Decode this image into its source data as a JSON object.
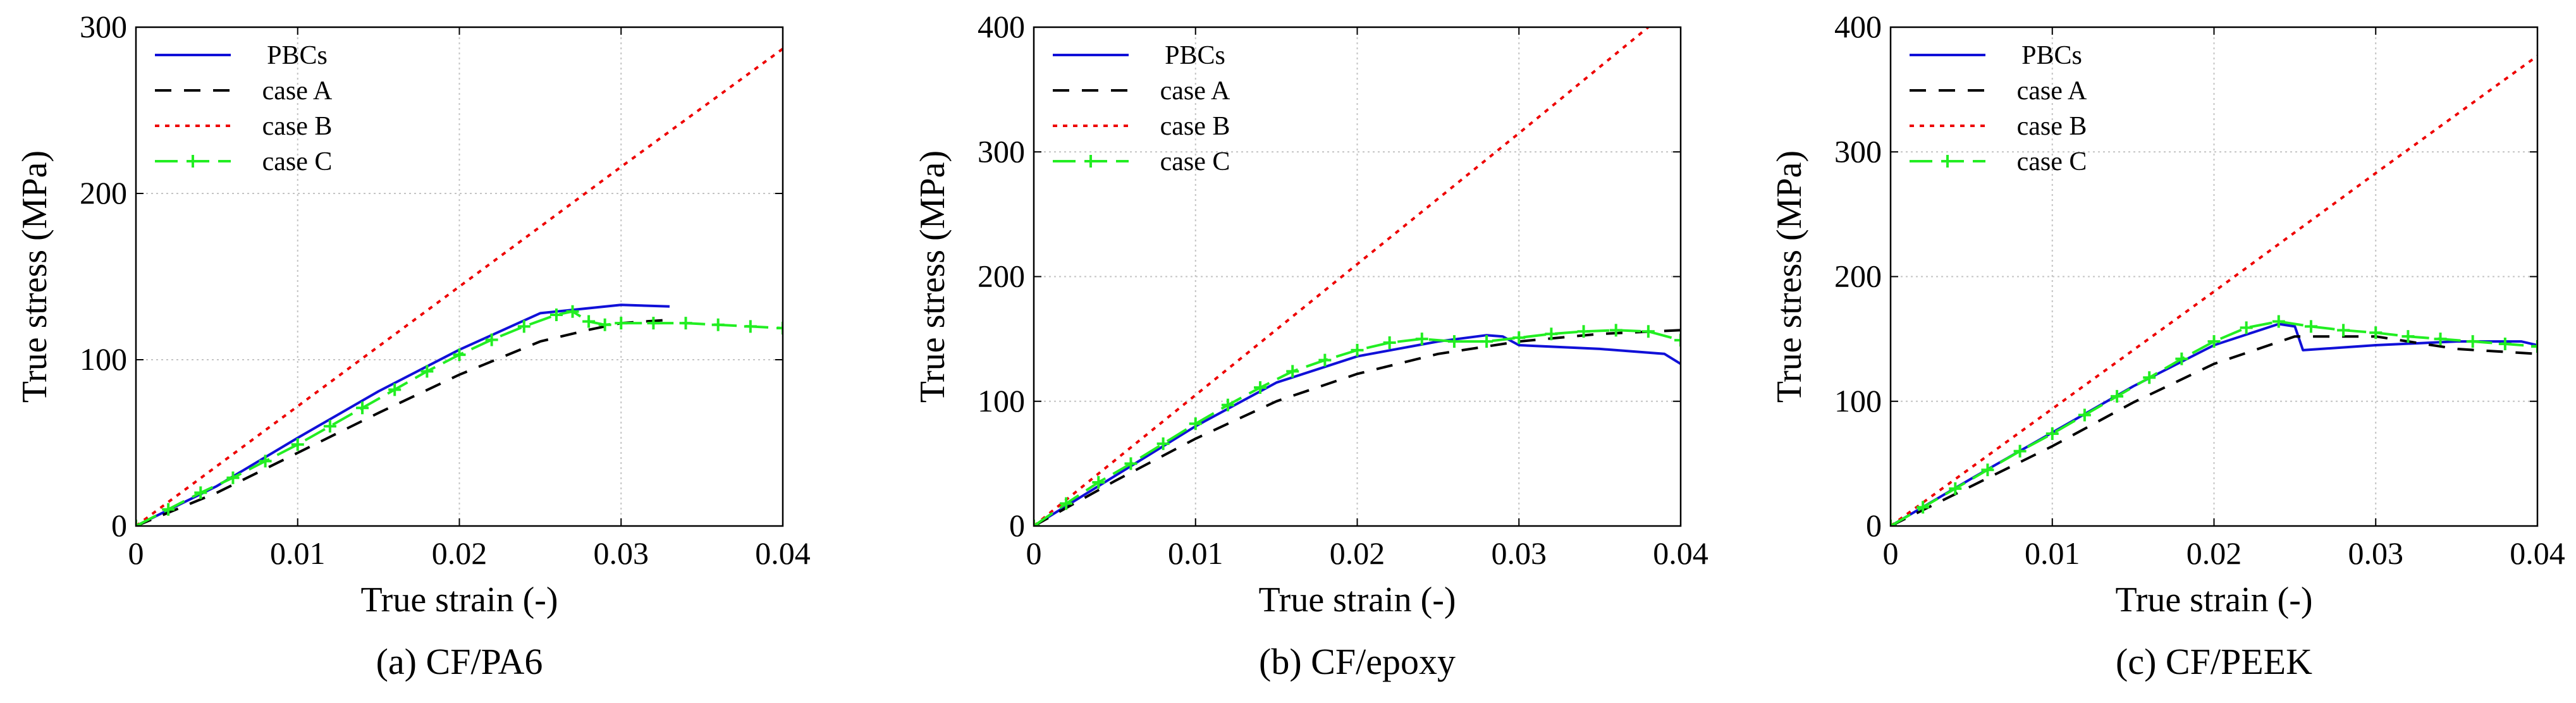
{
  "chart_data": [
    {
      "type": "line",
      "caption": "(a)  CF/PA6",
      "xlabel": "True strain (-)",
      "ylabel": "True stress (MPa)",
      "xlim": [
        0,
        0.04
      ],
      "ylim": [
        0,
        300
      ],
      "xticks": [
        "0",
        "0.01",
        "0.02",
        "0.03",
        "0.04"
      ],
      "yticks": [
        "0",
        "100",
        "200",
        "300"
      ],
      "grid": true,
      "legend_position": "top-left",
      "series": [
        {
          "name": "PBCs",
          "x": [
            0,
            0.005,
            0.01,
            0.015,
            0.02,
            0.025,
            0.028,
            0.03,
            0.033
          ],
          "y": [
            0,
            24,
            53,
            81,
            106,
            128,
            131,
            133,
            132
          ]
        },
        {
          "name": "case A",
          "x": [
            0,
            0.005,
            0.01,
            0.015,
            0.02,
            0.025,
            0.028,
            0.03,
            0.033
          ],
          "y": [
            0,
            20,
            44,
            68,
            91,
            111,
            118,
            122,
            124
          ]
        },
        {
          "name": "case B",
          "x": [
            0,
            0.01,
            0.02,
            0.03,
            0.04
          ],
          "y": [
            0,
            72,
            144,
            216,
            287
          ]
        },
        {
          "name": "case C",
          "x": [
            0,
            0.002,
            0.004,
            0.006,
            0.008,
            0.01,
            0.012,
            0.014,
            0.016,
            0.018,
            0.02,
            0.022,
            0.024,
            0.026,
            0.027,
            0.028,
            0.029,
            0.03,
            0.032,
            0.034,
            0.036,
            0.038,
            0.04
          ],
          "y": [
            0,
            10,
            20,
            29,
            39,
            49,
            60,
            71,
            82,
            93,
            103,
            112,
            120,
            127,
            129,
            123,
            121,
            122,
            122,
            122,
            121,
            120,
            119
          ]
        }
      ]
    },
    {
      "type": "line",
      "caption": "(b) CF/epoxy",
      "xlabel": "True strain (-)",
      "ylabel": "True stress (MPa)",
      "xlim": [
        0,
        0.04
      ],
      "ylim": [
        0,
        400
      ],
      "xticks": [
        "0",
        "0.01",
        "0.02",
        "0.03",
        "0.04"
      ],
      "yticks": [
        "0",
        "100",
        "200",
        "300",
        "400"
      ],
      "grid": true,
      "legend_position": "top-left",
      "series": [
        {
          "name": "PBCs",
          "x": [
            0,
            0.005,
            0.01,
            0.015,
            0.02,
            0.025,
            0.028,
            0.029,
            0.03,
            0.035,
            0.039,
            0.04
          ],
          "y": [
            0,
            40,
            80,
            115,
            136,
            148,
            153,
            152,
            145,
            142,
            138,
            130
          ]
        },
        {
          "name": "case A",
          "x": [
            0,
            0.005,
            0.01,
            0.015,
            0.02,
            0.025,
            0.03,
            0.035,
            0.04
          ],
          "y": [
            0,
            36,
            70,
            100,
            122,
            138,
            148,
            154,
            157
          ]
        },
        {
          "name": "case B",
          "x": [
            0,
            0.01,
            0.02,
            0.03,
            0.038
          ],
          "y": [
            0,
            105,
            210,
            315,
            400
          ]
        },
        {
          "name": "case C",
          "x": [
            0,
            0.002,
            0.004,
            0.006,
            0.008,
            0.01,
            0.012,
            0.014,
            0.016,
            0.018,
            0.02,
            0.022,
            0.024,
            0.026,
            0.028,
            0.03,
            0.032,
            0.034,
            0.036,
            0.038,
            0.04
          ],
          "y": [
            0,
            18,
            35,
            50,
            66,
            82,
            97,
            111,
            124,
            133,
            141,
            147,
            150,
            148,
            148,
            151,
            154,
            156,
            157,
            156,
            149
          ]
        }
      ]
    },
    {
      "type": "line",
      "caption": "(c) CF/PEEK",
      "xlabel": "True strain (-)",
      "ylabel": "True stress (MPa)",
      "xlim": [
        0,
        0.04
      ],
      "ylim": [
        0,
        400
      ],
      "xticks": [
        "0",
        "0.01",
        "0.02",
        "0.03",
        "0.04"
      ],
      "yticks": [
        "0",
        "100",
        "200",
        "300",
        "400"
      ],
      "grid": true,
      "legend_position": "top-left",
      "series": [
        {
          "name": "PBCs",
          "x": [
            0,
            0.005,
            0.01,
            0.015,
            0.02,
            0.024,
            0.025,
            0.0255,
            0.03,
            0.035,
            0.039,
            0.04
          ],
          "y": [
            0,
            38,
            75,
            112,
            145,
            162,
            160,
            141,
            145,
            148,
            148,
            145
          ]
        },
        {
          "name": "case A",
          "x": [
            0,
            0.005,
            0.01,
            0.015,
            0.02,
            0.025,
            0.03,
            0.035,
            0.04
          ],
          "y": [
            0,
            32,
            64,
            99,
            130,
            152,
            152,
            142,
            138
          ]
        },
        {
          "name": "case B",
          "x": [
            0,
            0.01,
            0.02,
            0.03,
            0.04
          ],
          "y": [
            0,
            94,
            188,
            283,
            377
          ]
        },
        {
          "name": "case C",
          "x": [
            0,
            0.002,
            0.004,
            0.006,
            0.008,
            0.01,
            0.012,
            0.014,
            0.016,
            0.018,
            0.02,
            0.022,
            0.024,
            0.026,
            0.028,
            0.03,
            0.032,
            0.034,
            0.036,
            0.038,
            0.04
          ],
          "y": [
            0,
            15,
            30,
            45,
            60,
            74,
            89,
            104,
            119,
            134,
            148,
            159,
            164,
            160,
            157,
            155,
            152,
            150,
            148,
            146,
            144
          ]
        }
      ]
    }
  ],
  "styles": {
    "PBCs": {
      "color": "#1010d8",
      "dash": "none",
      "marker": "none"
    },
    "case A": {
      "color": "#000000",
      "dash": "26,20",
      "marker": "none"
    },
    "case B": {
      "color": "#ee0000",
      "dash": "7,9",
      "marker": "none"
    },
    "case C": {
      "color": "#22ee22",
      "dash": "36,14",
      "marker": "plus"
    },
    "grid_color": "#c4c4c4"
  }
}
